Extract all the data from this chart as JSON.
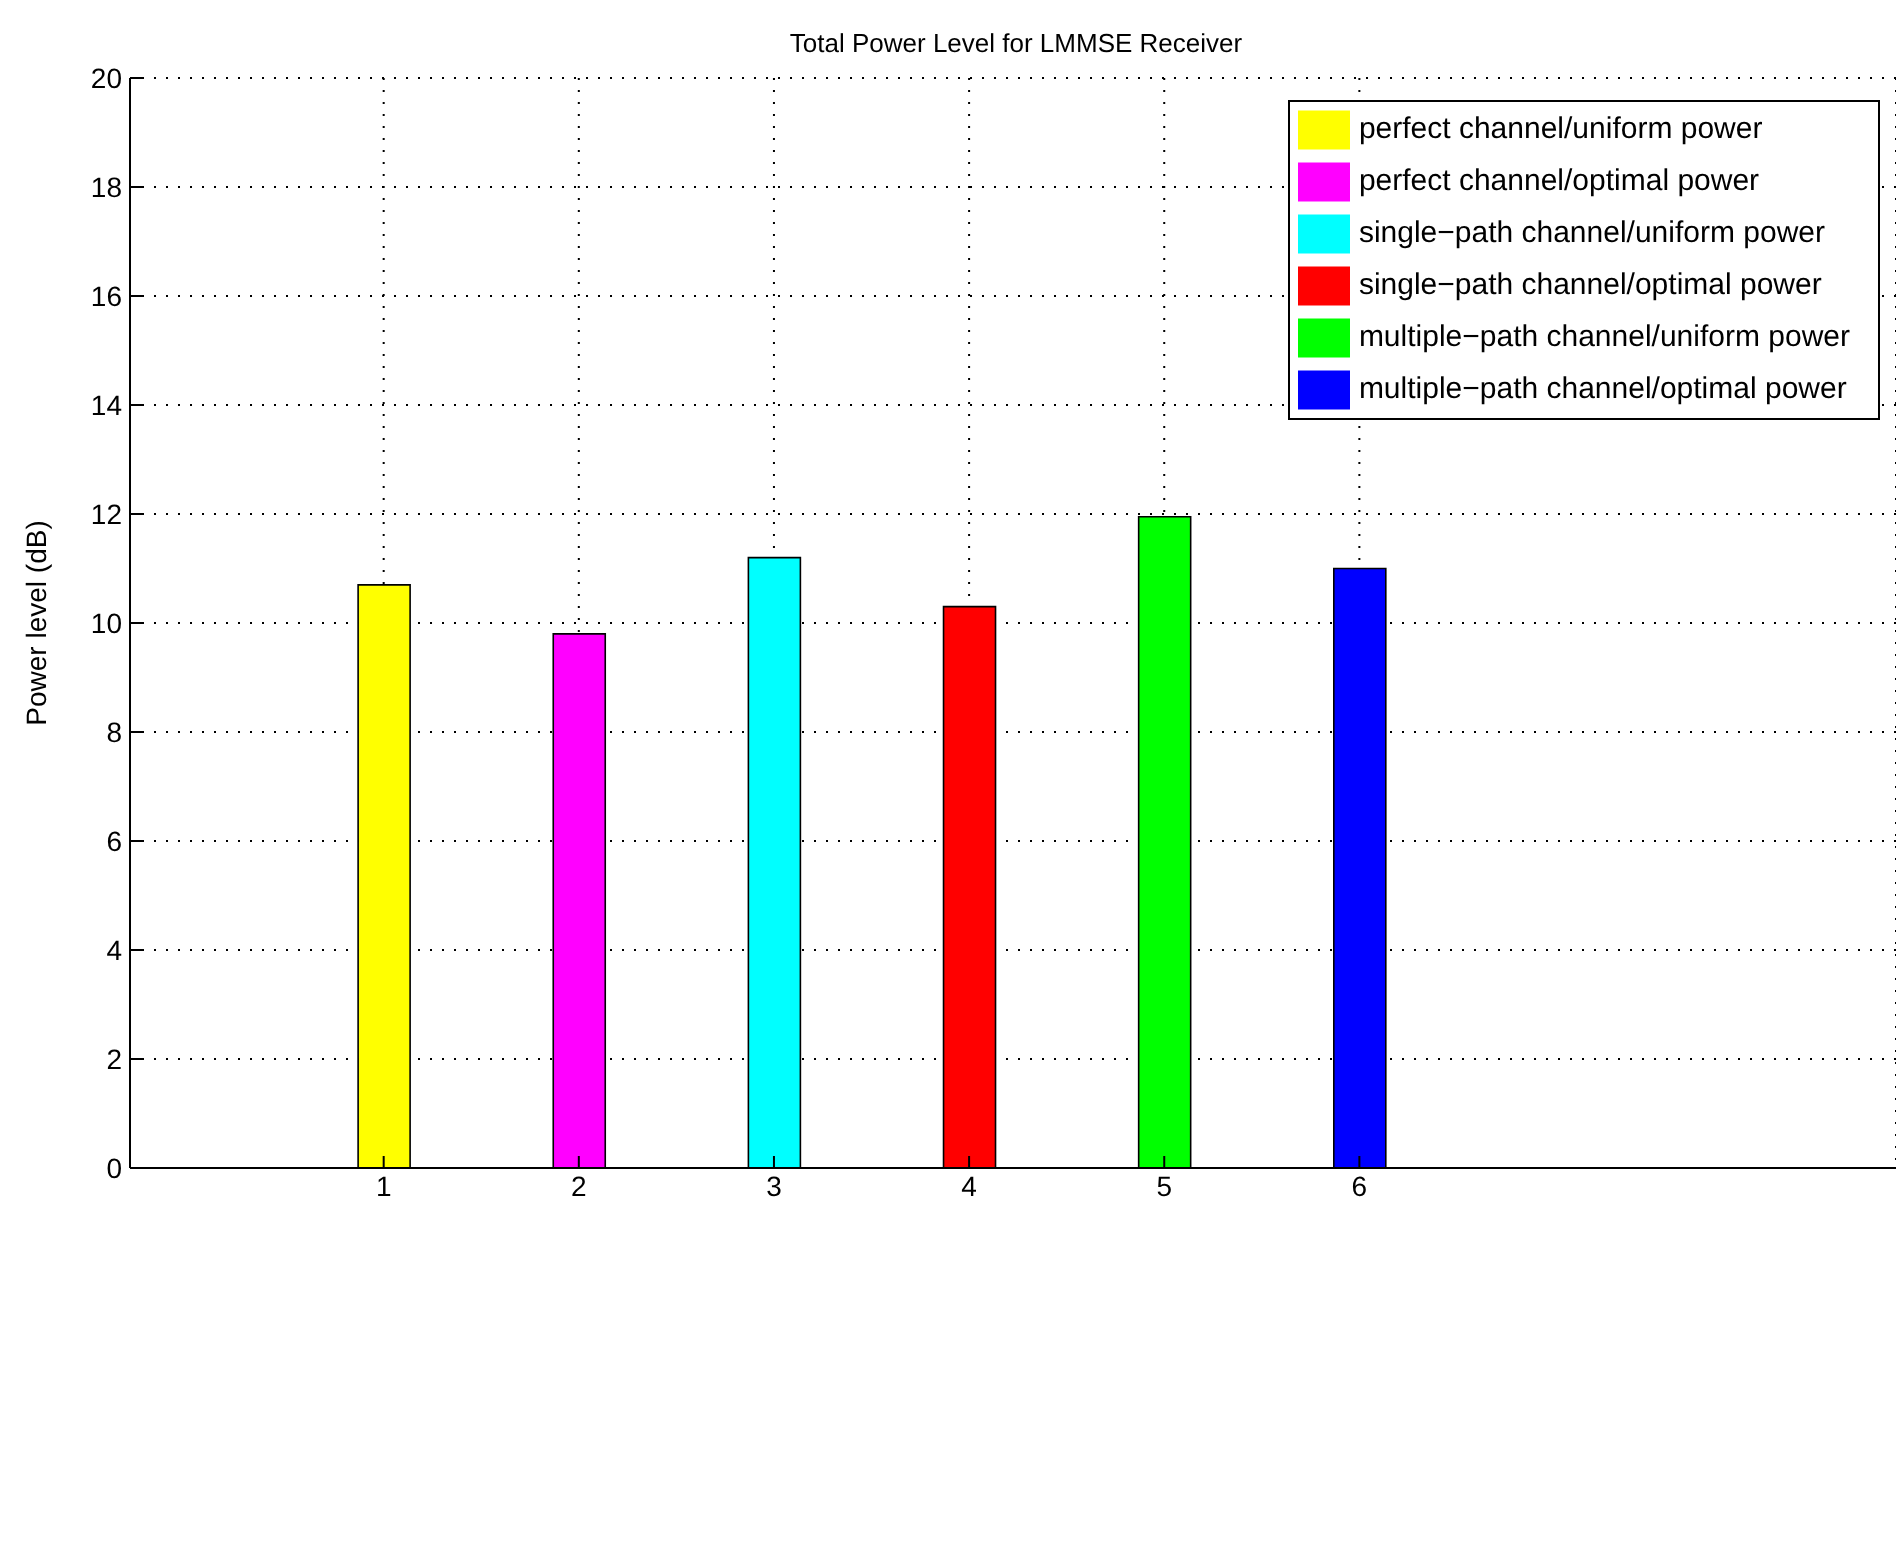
{
  "chart_data": {
    "type": "bar",
    "title": "Total Power Level for LMMSE Receiver",
    "ylabel": "Power level (dB)",
    "xlim": [
      -0.3,
      8.75
    ],
    "xticks": [
      1,
      2,
      3,
      4,
      5,
      6
    ],
    "ylim": [
      0,
      20
    ],
    "yticks": [
      0,
      2,
      4,
      6,
      8,
      10,
      12,
      14,
      16,
      18,
      20
    ],
    "grid": true,
    "legend": "top right",
    "series": [
      {
        "name": "perfect channel/uniform power",
        "color": "#ffff00",
        "x": [
          1
        ],
        "values": [
          10.7
        ]
      },
      {
        "name": "perfect channel/optimal power",
        "color": "#ff00ff",
        "x": [
          2
        ],
        "values": [
          9.8
        ]
      },
      {
        "name": "single−path channel/uniform power",
        "color": "#00ffff",
        "x": [
          3
        ],
        "values": [
          11.2
        ]
      },
      {
        "name": "single−path channel/optimal power",
        "color": "#ff0000",
        "x": [
          4
        ],
        "values": [
          10.3
        ]
      },
      {
        "name": "multiple−path channel/uniform power",
        "color": "#00ff00",
        "x": [
          5
        ],
        "values": [
          11.95
        ]
      },
      {
        "name": "multiple−path channel/optimal power",
        "color": "#0000ff",
        "x": [
          6
        ],
        "values": [
          11.0
        ]
      }
    ]
  }
}
